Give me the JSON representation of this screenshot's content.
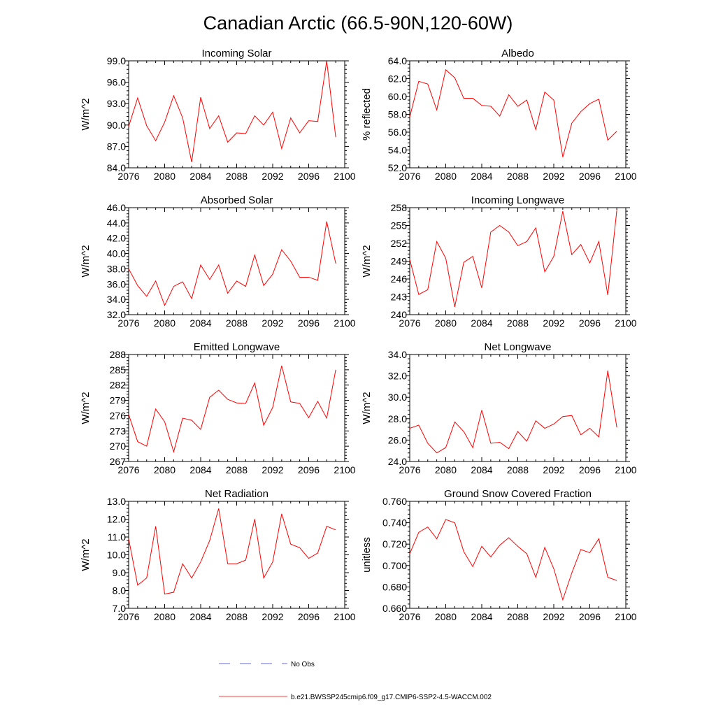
{
  "figure": {
    "title": "Canadian Arctic (66.5-90N,120-60W)",
    "legend": [
      {
        "label": "No Obs",
        "color": "#3a3ad0",
        "style": "dashed"
      },
      {
        "label": "b.e21.BWSSP245cmip6.f09_g17.CMIP6-SSP2-4.5-WACCM.002",
        "color": "#ff0000",
        "style": "solid"
      }
    ]
  },
  "chart_data": [
    {
      "type": "line",
      "title": "Incoming Solar",
      "ylabel": "W/m^2",
      "xlabel": "",
      "xlim": [
        2076,
        2100
      ],
      "ylim": [
        84,
        99
      ],
      "xticks": [
        "2076",
        "2080",
        "2084",
        "2088",
        "2092",
        "2096",
        "2100"
      ],
      "yticks": [
        "84.0",
        "87.0",
        "90.0",
        "93.0",
        "96.0",
        "99.0"
      ],
      "x": [
        2076,
        2077,
        2078,
        2079,
        2080,
        2081,
        2082,
        2083,
        2084,
        2085,
        2086,
        2087,
        2088,
        2089,
        2090,
        2091,
        2092,
        2093,
        2094,
        2095,
        2096,
        2097,
        2098,
        2099
      ],
      "series": [
        {
          "name": "b.e21.BWSSP245cmip6.f09_g17.CMIP6-SSP2-4.5-WACCM.002",
          "color": "#ff0000",
          "values": [
            89.8,
            93.8,
            89.9,
            87.8,
            90.4,
            94.1,
            91.0,
            84.8,
            93.9,
            89.5,
            91.3,
            87.6,
            88.9,
            88.8,
            91.3,
            90.0,
            91.8,
            86.7,
            91.0,
            88.9,
            90.6,
            90.5,
            99.0,
            88.3
          ]
        }
      ]
    },
    {
      "type": "line",
      "title": "Albedo",
      "ylabel": "% reflected",
      "xlabel": "",
      "xlim": [
        2076,
        2100
      ],
      "ylim": [
        52,
        64
      ],
      "xticks": [
        "2076",
        "2080",
        "2084",
        "2088",
        "2092",
        "2096",
        "2100"
      ],
      "yticks": [
        "52.0",
        "54.0",
        "56.0",
        "58.0",
        "60.0",
        "62.0",
        "64.0"
      ],
      "x": [
        2076,
        2077,
        2078,
        2079,
        2080,
        2081,
        2082,
        2083,
        2084,
        2085,
        2086,
        2087,
        2088,
        2089,
        2090,
        2091,
        2092,
        2093,
        2094,
        2095,
        2096,
        2097,
        2098,
        2099
      ],
      "series": [
        {
          "name": "b.e21.BWSSP245cmip6.f09_g17.CMIP6-SSP2-4.5-WACCM.002",
          "color": "#ff0000",
          "values": [
            57.7,
            61.7,
            61.4,
            58.5,
            63.0,
            62.1,
            59.8,
            59.8,
            59.0,
            58.9,
            57.8,
            60.2,
            58.9,
            59.6,
            56.3,
            60.5,
            59.6,
            53.2,
            57.0,
            58.3,
            59.2,
            59.7,
            55.1,
            56.1
          ]
        }
      ]
    },
    {
      "type": "line",
      "title": "Absorbed Solar",
      "ylabel": "W/m^2",
      "xlabel": "",
      "xlim": [
        2076,
        2100
      ],
      "ylim": [
        32,
        46
      ],
      "xticks": [
        "2076",
        "2080",
        "2084",
        "2088",
        "2092",
        "2096",
        "2100"
      ],
      "yticks": [
        "32.0",
        "34.0",
        "36.0",
        "38.0",
        "40.0",
        "42.0",
        "44.0",
        "46.0"
      ],
      "x": [
        2076,
        2077,
        2078,
        2079,
        2080,
        2081,
        2082,
        2083,
        2084,
        2085,
        2086,
        2087,
        2088,
        2089,
        2090,
        2091,
        2092,
        2093,
        2094,
        2095,
        2096,
        2097,
        2098,
        2099
      ],
      "series": [
        {
          "name": "b.e21.BWSSP245cmip6.f09_g17.CMIP6-SSP2-4.5-WACCM.002",
          "color": "#ff0000",
          "values": [
            38.0,
            35.8,
            34.4,
            36.4,
            33.2,
            35.7,
            36.3,
            34.1,
            38.5,
            36.6,
            38.5,
            34.8,
            36.4,
            35.7,
            39.8,
            35.8,
            37.3,
            40.5,
            39.0,
            36.9,
            36.9,
            36.5,
            44.2,
            38.7
          ]
        }
      ]
    },
    {
      "type": "line",
      "title": "Incoming Longwave",
      "ylabel": "W/m^2",
      "xlabel": "",
      "xlim": [
        2076,
        2100
      ],
      "ylim": [
        240,
        258
      ],
      "xticks": [
        "2076",
        "2080",
        "2084",
        "2088",
        "2092",
        "2096",
        "2100"
      ],
      "yticks": [
        "240",
        "243",
        "246",
        "249",
        "252",
        "255",
        "258"
      ],
      "x": [
        2076,
        2077,
        2078,
        2079,
        2080,
        2081,
        2082,
        2083,
        2084,
        2085,
        2086,
        2087,
        2088,
        2089,
        2090,
        2091,
        2092,
        2093,
        2094,
        2095,
        2096,
        2097,
        2098,
        2099
      ],
      "series": [
        {
          "name": "b.e21.BWSSP245cmip6.f09_g17.CMIP6-SSP2-4.5-WACCM.002",
          "color": "#ff0000",
          "values": [
            249.3,
            243.4,
            244.2,
            252.3,
            249.5,
            241.3,
            248.8,
            249.8,
            244.5,
            253.9,
            255.0,
            253.9,
            251.6,
            252.3,
            254.6,
            247.2,
            249.8,
            257.4,
            250.1,
            251.8,
            248.7,
            252.3,
            243.3,
            257.6
          ]
        }
      ]
    },
    {
      "type": "line",
      "title": "Emitted Longwave",
      "ylabel": "W/m^2",
      "xlabel": "",
      "xlim": [
        2076,
        2100
      ],
      "ylim": [
        267,
        288
      ],
      "xticks": [
        "2076",
        "2080",
        "2084",
        "2088",
        "2092",
        "2096",
        "2100"
      ],
      "yticks": [
        "267",
        "270",
        "273",
        "276",
        "279",
        "282",
        "285",
        "288"
      ],
      "x": [
        2076,
        2077,
        2078,
        2079,
        2080,
        2081,
        2082,
        2083,
        2084,
        2085,
        2086,
        2087,
        2088,
        2089,
        2090,
        2091,
        2092,
        2093,
        2094,
        2095,
        2096,
        2097,
        2098,
        2099
      ],
      "series": [
        {
          "name": "b.e21.BWSSP245cmip6.f09_g17.CMIP6-SSP2-4.5-WACCM.002",
          "color": "#ff0000",
          "values": [
            276.2,
            270.9,
            270.0,
            277.3,
            274.8,
            268.9,
            275.5,
            275.1,
            273.3,
            279.6,
            281.0,
            279.2,
            278.5,
            278.4,
            282.4,
            274.1,
            277.6,
            285.8,
            278.7,
            278.4,
            275.6,
            278.8,
            275.5,
            285.0
          ]
        }
      ]
    },
    {
      "type": "line",
      "title": "Net Longwave",
      "ylabel": "W/m^2",
      "xlabel": "",
      "xlim": [
        2076,
        2100
      ],
      "ylim": [
        24,
        34
      ],
      "xticks": [
        "2076",
        "2080",
        "2084",
        "2088",
        "2092",
        "2096",
        "2100"
      ],
      "yticks": [
        "24.0",
        "26.0",
        "28.0",
        "30.0",
        "32.0",
        "34.0"
      ],
      "x": [
        2076,
        2077,
        2078,
        2079,
        2080,
        2081,
        2082,
        2083,
        2084,
        2085,
        2086,
        2087,
        2088,
        2089,
        2090,
        2091,
        2092,
        2093,
        2094,
        2095,
        2096,
        2097,
        2098,
        2099
      ],
      "series": [
        {
          "name": "b.e21.BWSSP245cmip6.f09_g17.CMIP6-SSP2-4.5-WACCM.002",
          "color": "#ff0000",
          "values": [
            27.1,
            27.4,
            25.7,
            24.8,
            25.3,
            27.7,
            26.8,
            25.3,
            28.8,
            25.7,
            25.8,
            25.2,
            26.8,
            25.9,
            27.8,
            27.1,
            27.5,
            28.2,
            28.3,
            26.5,
            27.1,
            26.3,
            32.5,
            27.2
          ]
        }
      ]
    },
    {
      "type": "line",
      "title": "Net Radiation",
      "ylabel": "W/m^2",
      "xlabel": "",
      "xlim": [
        2076,
        2100
      ],
      "ylim": [
        7,
        13
      ],
      "xticks": [
        "2076",
        "2080",
        "2084",
        "2088",
        "2092",
        "2096",
        "2100"
      ],
      "yticks": [
        "7.0",
        "8.0",
        "9.0",
        "10.0",
        "11.0",
        "12.0",
        "13.0"
      ],
      "x": [
        2076,
        2077,
        2078,
        2079,
        2080,
        2081,
        2082,
        2083,
        2084,
        2085,
        2086,
        2087,
        2088,
        2089,
        2090,
        2091,
        2092,
        2093,
        2094,
        2095,
        2096,
        2097,
        2098,
        2099
      ],
      "series": [
        {
          "name": "b.e21.BWSSP245cmip6.f09_g17.CMIP6-SSP2-4.5-WACCM.002",
          "color": "#ff0000",
          "values": [
            10.9,
            8.3,
            8.7,
            11.6,
            7.8,
            7.9,
            9.5,
            8.7,
            9.6,
            10.8,
            12.6,
            9.5,
            9.5,
            9.7,
            12.0,
            8.7,
            9.6,
            12.3,
            10.6,
            10.4,
            9.8,
            10.1,
            11.6,
            11.4
          ]
        }
      ]
    },
    {
      "type": "line",
      "title": "Ground Snow Covered Fraction",
      "ylabel": "unitless",
      "xlabel": "",
      "xlim": [
        2076,
        2100
      ],
      "ylim": [
        0.66,
        0.76
      ],
      "xticks": [
        "2076",
        "2080",
        "2084",
        "2088",
        "2092",
        "2096",
        "2100"
      ],
      "yticks": [
        "0.660",
        "0.680",
        "0.700",
        "0.720",
        "0.740",
        "0.760"
      ],
      "x": [
        2076,
        2077,
        2078,
        2079,
        2080,
        2081,
        2082,
        2083,
        2084,
        2085,
        2086,
        2087,
        2088,
        2089,
        2090,
        2091,
        2092,
        2093,
        2094,
        2095,
        2096,
        2097,
        2098,
        2099
      ],
      "series": [
        {
          "name": "b.e21.BWSSP245cmip6.f09_g17.CMIP6-SSP2-4.5-WACCM.002",
          "color": "#ff0000",
          "values": [
            0.711,
            0.731,
            0.736,
            0.725,
            0.743,
            0.74,
            0.713,
            0.699,
            0.718,
            0.708,
            0.719,
            0.726,
            0.718,
            0.711,
            0.689,
            0.717,
            0.697,
            0.668,
            0.693,
            0.715,
            0.712,
            0.725,
            0.689,
            0.686
          ]
        }
      ]
    }
  ]
}
